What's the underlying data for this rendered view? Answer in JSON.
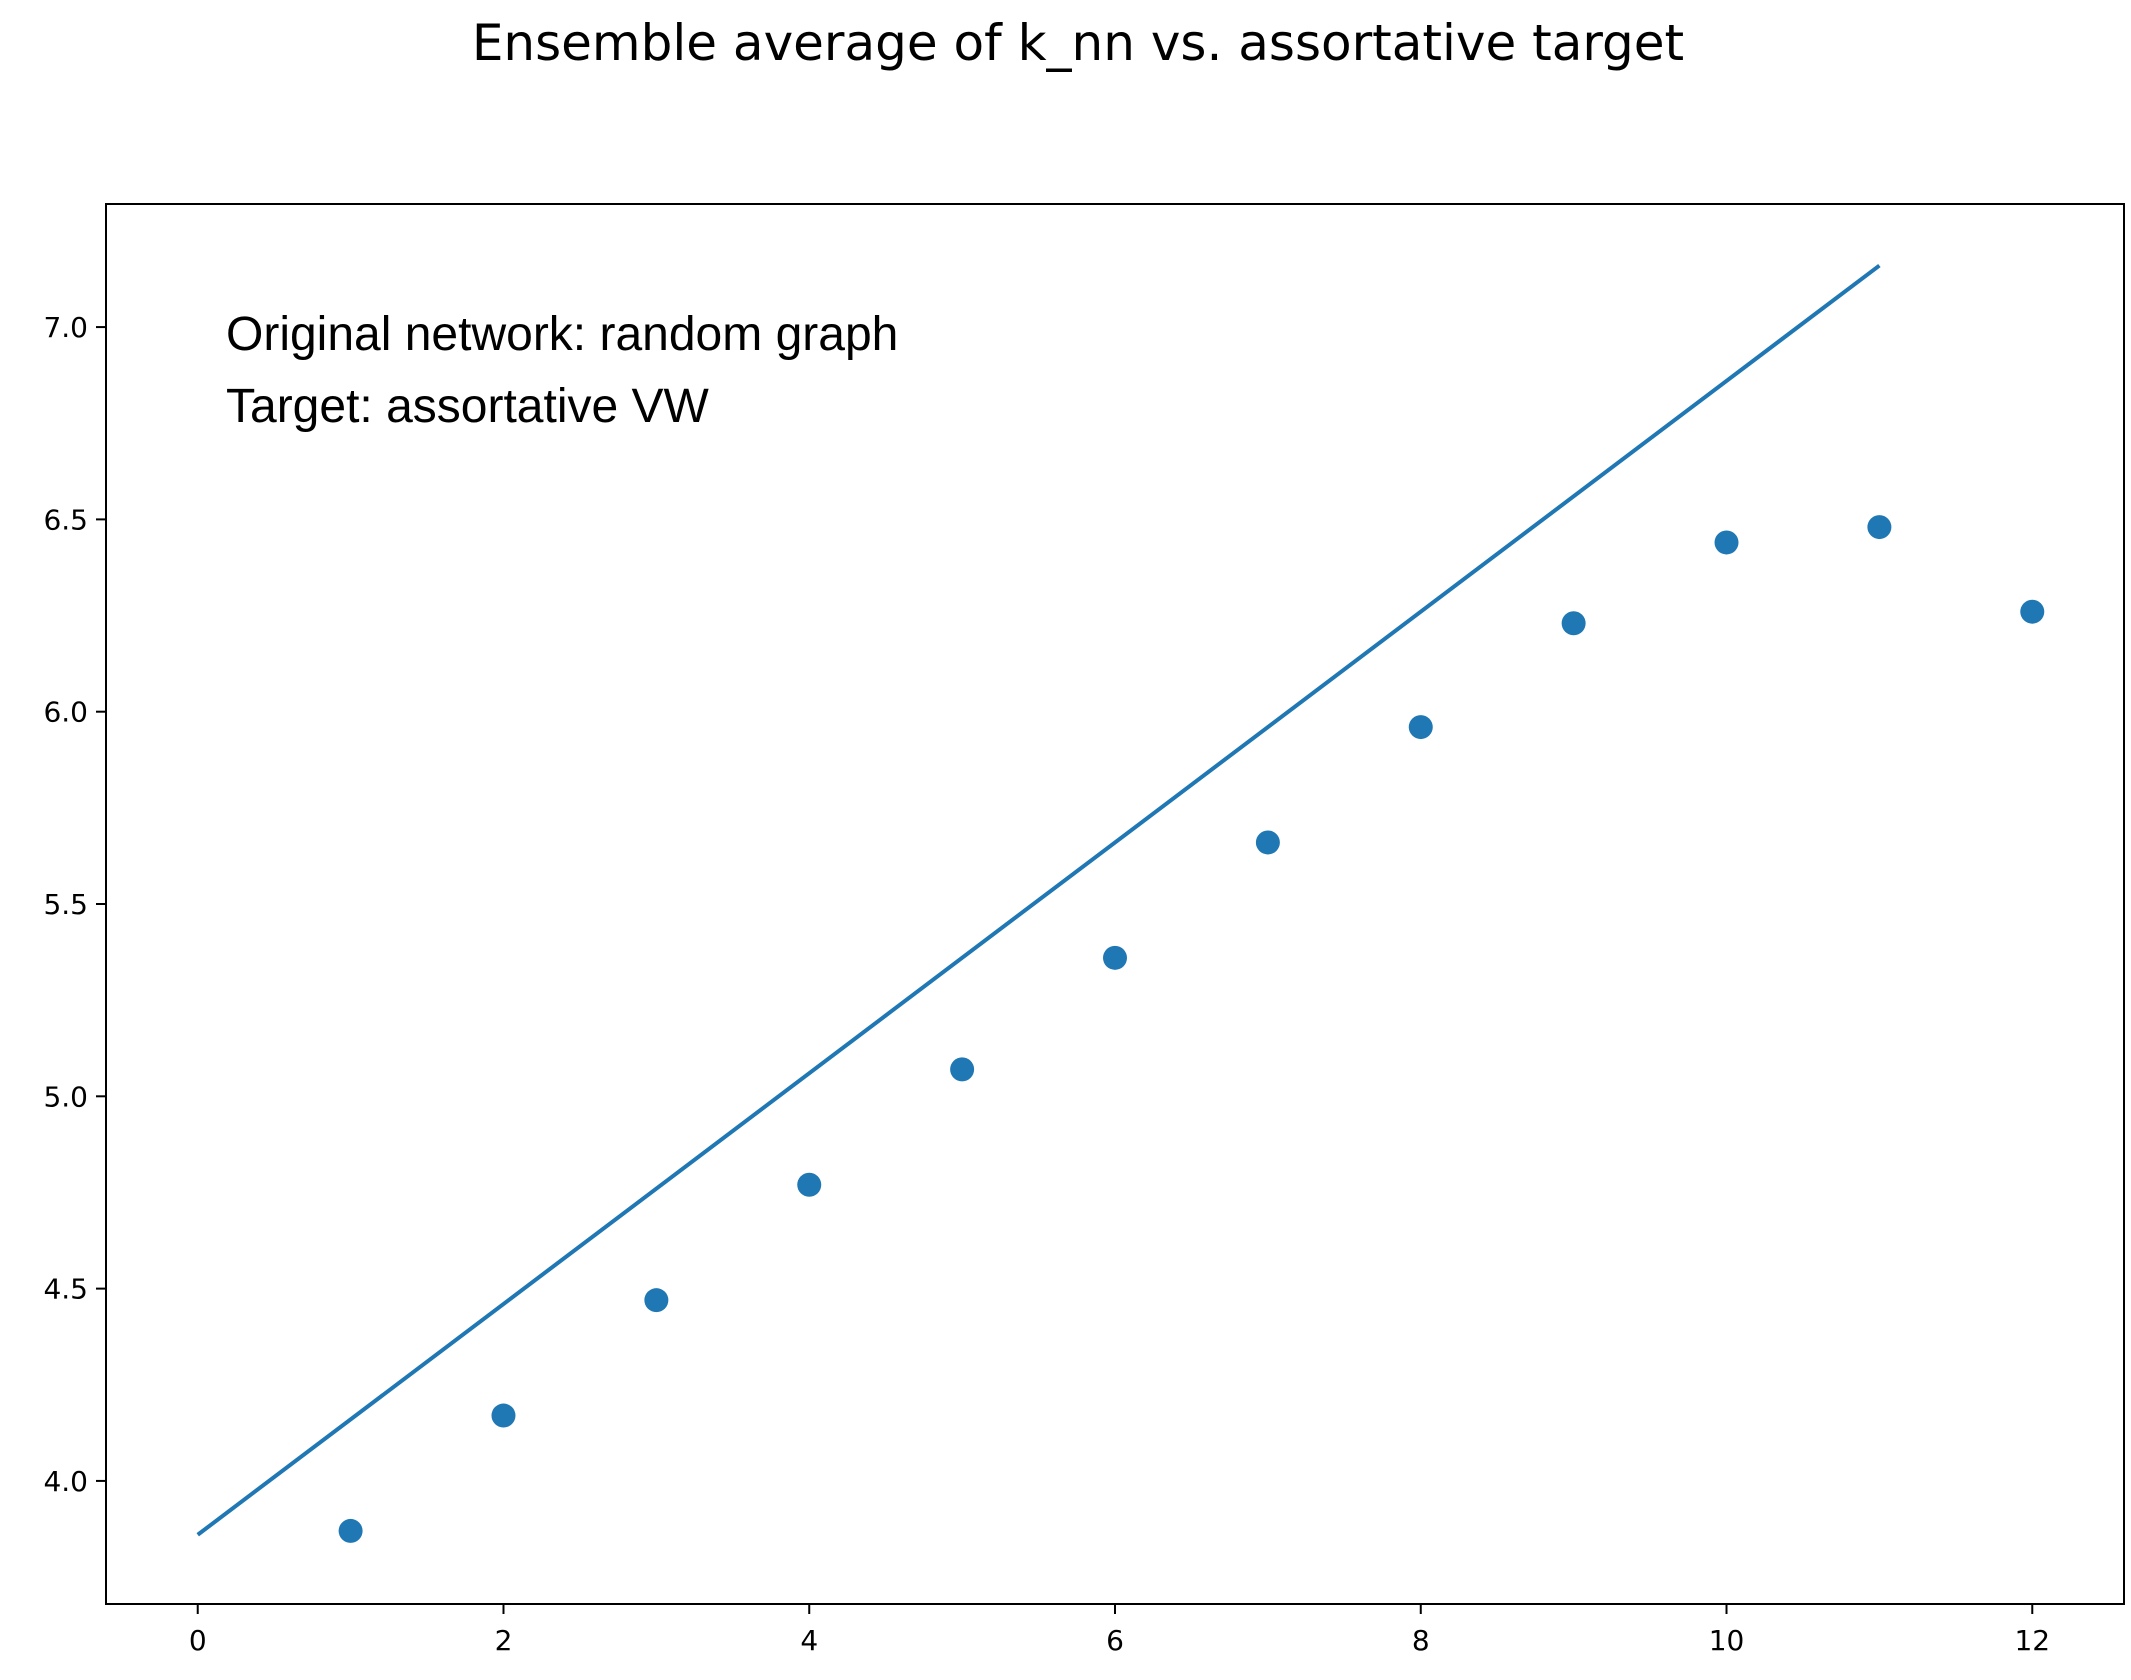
{
  "chart_data": {
    "type": "scatter",
    "title": "Ensemble average of k_nn vs. assortative target",
    "xlabel": "",
    "ylabel": "",
    "xlim": [
      -0.6,
      12.6
    ],
    "ylim": [
      3.68,
      7.32
    ],
    "x_ticks": [
      0,
      2,
      4,
      6,
      8,
      10,
      12
    ],
    "y_ticks": [
      4.0,
      4.5,
      5.0,
      5.5,
      6.0,
      6.5,
      7.0
    ],
    "grid": false,
    "legend": "none",
    "annotation_lines": [
      "Original network: random graph",
      "Target: assortative VW"
    ],
    "color": "#1f77b4",
    "series": [
      {
        "kind": "scatter",
        "x": [
          1,
          2,
          3,
          4,
          5,
          6,
          7,
          8,
          9,
          10,
          11,
          12
        ],
        "y": [
          3.87,
          4.17,
          4.47,
          4.77,
          5.07,
          5.36,
          5.66,
          5.96,
          6.23,
          6.44,
          6.48,
          6.26
        ]
      },
      {
        "kind": "line",
        "x": [
          0,
          11
        ],
        "y": [
          3.86,
          7.16
        ]
      }
    ]
  }
}
